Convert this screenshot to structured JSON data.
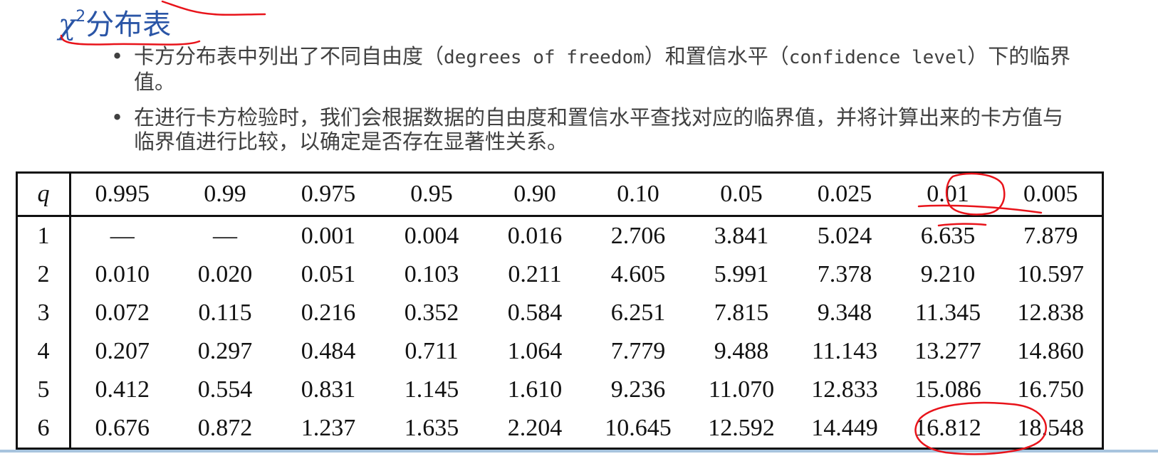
{
  "title": {
    "symbol": "χ",
    "superscript": "2",
    "text": "分布表"
  },
  "bullets": [
    {
      "a": "卡方分布表中列出了不同自由度（",
      "b": "degrees of freedom",
      "c": "）和置信水平（",
      "d": "confidence level",
      "e": "）下的临界值。"
    },
    {
      "a": "在进行卡方检验时，我们会根据数据的自由度和置信水平查找对应的临界值，并将计算出来的卡方值与临界值进行比较，以确定是否存在显著性关系。"
    }
  ],
  "table": {
    "corner": "q",
    "columns": [
      "0.995",
      "0.99",
      "0.975",
      "0.95",
      "0.90",
      "0.10",
      "0.05",
      "0.025",
      "0.01",
      "0.005"
    ],
    "rows": [
      {
        "df": "1",
        "values": [
          "—",
          "—",
          "0.001",
          "0.004",
          "0.016",
          "2.706",
          "3.841",
          "5.024",
          "6.635",
          "7.879"
        ]
      },
      {
        "df": "2",
        "values": [
          "0.010",
          "0.020",
          "0.051",
          "0.103",
          "0.211",
          "4.605",
          "5.991",
          "7.378",
          "9.210",
          "10.597"
        ]
      },
      {
        "df": "3",
        "values": [
          "0.072",
          "0.115",
          "0.216",
          "0.352",
          "0.584",
          "6.251",
          "7.815",
          "9.348",
          "11.345",
          "12.838"
        ]
      },
      {
        "df": "4",
        "values": [
          "0.207",
          "0.297",
          "0.484",
          "0.711",
          "1.064",
          "7.779",
          "9.488",
          "11.143",
          "13.277",
          "14.860"
        ]
      },
      {
        "df": "5",
        "values": [
          "0.412",
          "0.554",
          "0.831",
          "1.145",
          "1.610",
          "9.236",
          "11.070",
          "12.833",
          "15.086",
          "16.750"
        ]
      },
      {
        "df": "6",
        "values": [
          "0.676",
          "0.872",
          "1.237",
          "1.635",
          "2.204",
          "10.645",
          "12.592",
          "14.449",
          "16.812",
          "18.548"
        ]
      }
    ]
  },
  "colors": {
    "title": "#2a55a6",
    "annotation_ink": "#e8131a",
    "text": "#404040"
  }
}
